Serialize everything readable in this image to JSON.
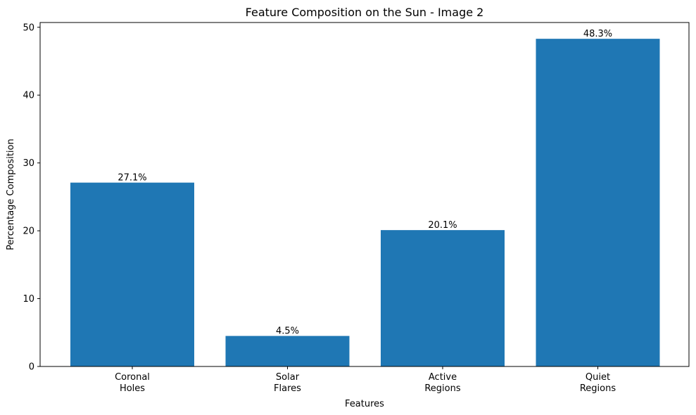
{
  "chart_data": {
    "type": "bar",
    "title": "Feature Composition on the Sun - Image 2",
    "xlabel": "Features",
    "ylabel": "Percentage Composition",
    "categories": [
      [
        "Coronal",
        "Holes"
      ],
      [
        "Solar",
        "Flares"
      ],
      [
        "Active",
        "Regions"
      ],
      [
        "Quiet",
        "Regions"
      ]
    ],
    "values": [
      27.1,
      4.5,
      20.1,
      48.3
    ],
    "data_labels": [
      "27.1%",
      "4.5%",
      "20.1%",
      "48.3%"
    ],
    "yticks": [
      "0",
      "10",
      "20",
      "30",
      "40",
      "50"
    ],
    "ylim": [
      0,
      50.7
    ],
    "bar_color": "#1f77b4",
    "grid": false,
    "legend": "none"
  }
}
